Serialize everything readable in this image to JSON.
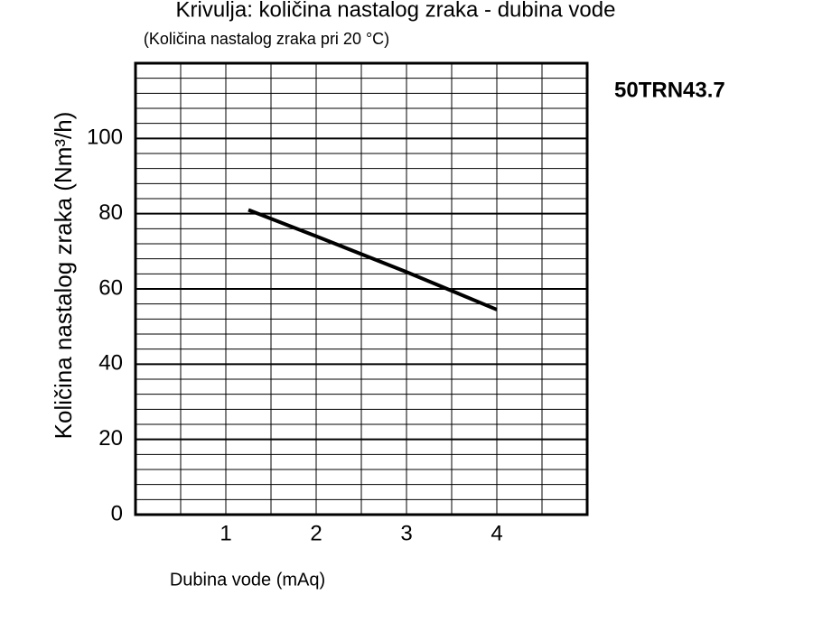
{
  "chart_data": {
    "type": "line",
    "title": "Krivulja: količina nastalog zraka - dubina vode",
    "subtitle": "(Količina nastalog zraka pri 20 °C)",
    "annotation": "50TRN43.7",
    "x_label": "Dubina vode (mAq)",
    "y_label": "Količina nastalog zraka (Nm³/h)",
    "x": [
      1.25,
      2,
      3,
      4
    ],
    "series": [
      {
        "name": "50TRN43.7",
        "color": "#000000",
        "values": [
          81,
          74,
          64.5,
          54.5
        ]
      }
    ],
    "xlim": [
      0,
      5
    ],
    "ylim": [
      0,
      120
    ],
    "xticks": [
      1,
      2,
      3,
      4
    ],
    "yticks": [
      0,
      20,
      40,
      60,
      80,
      100
    ],
    "xminorticks": [
      0.5,
      1.5,
      2.5,
      3.5,
      4.5
    ],
    "yminorticks": [
      4,
      8,
      12,
      16,
      24,
      28,
      32,
      36,
      44,
      48,
      52,
      56,
      64,
      68,
      72,
      76,
      84,
      88,
      92,
      96,
      104,
      108,
      112,
      116
    ],
    "grid": true
  }
}
